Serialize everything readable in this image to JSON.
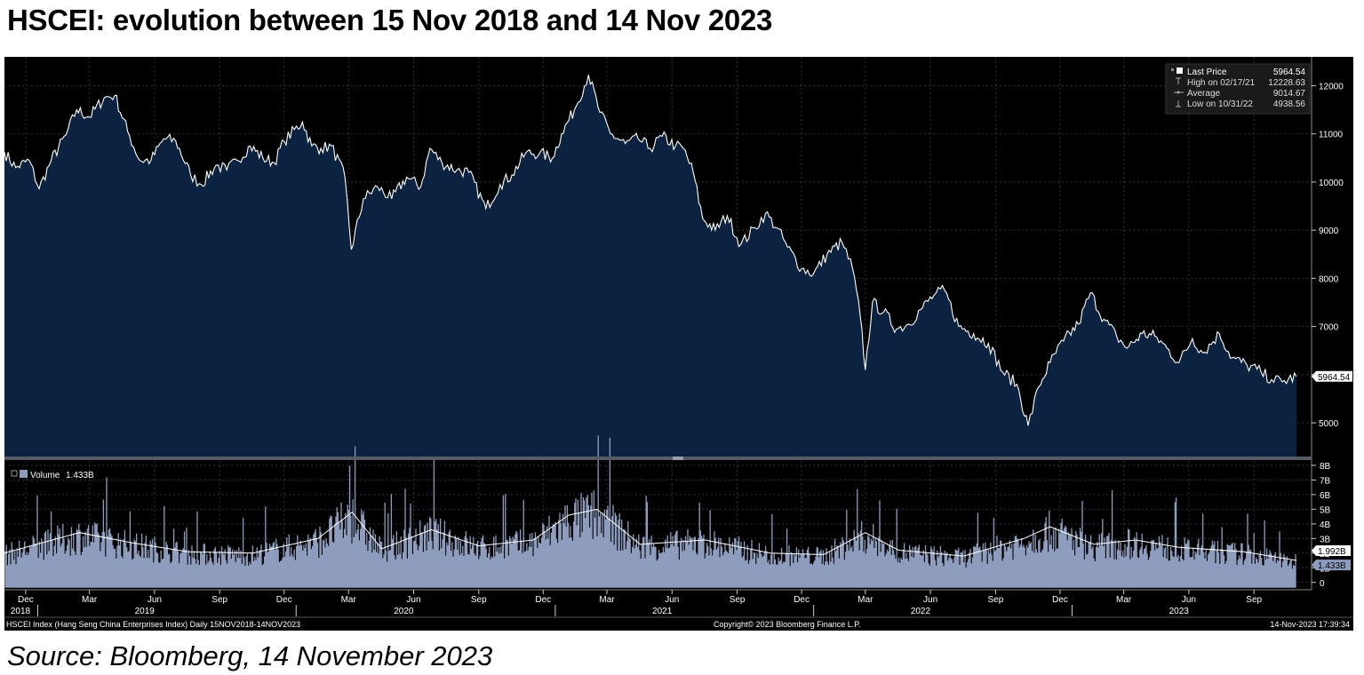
{
  "title": "HSCEI: evolution between 15 Nov 2018 and 14 Nov 2023",
  "source": "Source: Bloomberg, 14 November 2023",
  "footer": {
    "left": "HSCEI Index (Hang Seng China Enterprises Index)  Daily 15NOV2018-14NOV2023",
    "center": "Copyright© 2023 Bloomberg Finance L.P.",
    "right": "14-Nov-2023 17:39:34"
  },
  "colors": {
    "background": "#000000",
    "price_fill": "#0b2240",
    "price_line": "#ffffff",
    "volume_bars": "#8e9dbd",
    "volume_ma": "#ffffff",
    "grid": "#2c3442",
    "axis_text": "#ffffff",
    "last_price_box": "#ffffff"
  },
  "legend_price": {
    "rows": [
      {
        "icon": "square-icon",
        "label": "Last Price",
        "value": "5964.54"
      },
      {
        "icon": "high-marker-icon",
        "label": "High on 02/17/21",
        "value": "12228.63"
      },
      {
        "icon": "average-line-icon",
        "label": "Average",
        "value": "9014.67"
      },
      {
        "icon": "low-marker-icon",
        "label": "Low on 10/31/22",
        "value": "4938.56"
      }
    ]
  },
  "legend_volume": {
    "label": "Volume",
    "value": "1.433B"
  },
  "chart_data": [
    {
      "type": "area",
      "series_name": "Last Price",
      "x_range": [
        "2018-11-15",
        "2023-11-14"
      ],
      "ylim": [
        4300,
        12600
      ],
      "y_ticks": [
        5000,
        6000,
        7000,
        8000,
        9000,
        10000,
        11000,
        12000
      ],
      "y_tick_labels": [
        "5000",
        "6000",
        "7000",
        "8000",
        "9000",
        "10000",
        "11000",
        "12000"
      ],
      "grid": true,
      "last_value_label": "5964.54",
      "points": [
        [
          "2018-11-15",
          10620
        ],
        [
          "2018-12-01",
          10300
        ],
        [
          "2018-12-20",
          10450
        ],
        [
          "2019-01-03",
          9860
        ],
        [
          "2019-01-20",
          10450
        ],
        [
          "2019-02-10",
          10980
        ],
        [
          "2019-02-25",
          11500
        ],
        [
          "2019-03-15",
          11350
        ],
        [
          "2019-04-05",
          11750
        ],
        [
          "2019-04-20",
          11800
        ],
        [
          "2019-05-08",
          11050
        ],
        [
          "2019-05-25",
          10450
        ],
        [
          "2019-06-10",
          10450
        ],
        [
          "2019-06-28",
          10900
        ],
        [
          "2019-07-15",
          10850
        ],
        [
          "2019-08-05",
          10150
        ],
        [
          "2019-08-20",
          9950
        ],
        [
          "2019-09-10",
          10350
        ],
        [
          "2019-09-25",
          10250
        ],
        [
          "2019-10-10",
          10450
        ],
        [
          "2019-10-28",
          10750
        ],
        [
          "2019-11-15",
          10500
        ],
        [
          "2019-12-01",
          10400
        ],
        [
          "2019-12-15",
          10850
        ],
        [
          "2020-01-10",
          11250
        ],
        [
          "2020-01-23",
          10750
        ],
        [
          "2020-02-05",
          10700
        ],
        [
          "2020-02-20",
          10750
        ],
        [
          "2020-03-10",
          10100
        ],
        [
          "2020-03-19",
          8600
        ],
        [
          "2020-04-05",
          9650
        ],
        [
          "2020-04-25",
          9900
        ],
        [
          "2020-05-15",
          9650
        ],
        [
          "2020-06-05",
          10100
        ],
        [
          "2020-06-25",
          9900
        ],
        [
          "2020-07-08",
          10700
        ],
        [
          "2020-07-25",
          10400
        ],
        [
          "2020-08-15",
          10250
        ],
        [
          "2020-09-01",
          10200
        ],
        [
          "2020-09-25",
          9450
        ],
        [
          "2020-10-15",
          9950
        ],
        [
          "2020-11-01",
          10150
        ],
        [
          "2020-11-20",
          10600
        ],
        [
          "2020-12-10",
          10600
        ],
        [
          "2020-12-28",
          10500
        ],
        [
          "2021-01-10",
          11000
        ],
        [
          "2021-01-28",
          11500
        ],
        [
          "2021-02-17",
          12228
        ],
        [
          "2021-03-05",
          11450
        ],
        [
          "2021-03-20",
          11000
        ],
        [
          "2021-04-10",
          10800
        ],
        [
          "2021-04-28",
          10900
        ],
        [
          "2021-05-15",
          10700
        ],
        [
          "2021-06-01",
          10950
        ],
        [
          "2021-06-20",
          10750
        ],
        [
          "2021-07-01",
          10700
        ],
        [
          "2021-07-15",
          10200
        ],
        [
          "2021-07-28",
          9250
        ],
        [
          "2021-08-15",
          9000
        ],
        [
          "2021-09-01",
          9300
        ],
        [
          "2021-09-20",
          8700
        ],
        [
          "2021-10-10",
          9050
        ],
        [
          "2021-10-25",
          9350
        ],
        [
          "2021-11-10",
          9050
        ],
        [
          "2021-11-25",
          8650
        ],
        [
          "2021-12-15",
          8200
        ],
        [
          "2022-01-01",
          8100
        ],
        [
          "2022-01-20",
          8500
        ],
        [
          "2022-02-10",
          8750
        ],
        [
          "2022-02-25",
          8200
        ],
        [
          "2022-03-08",
          7200
        ],
        [
          "2022-03-15",
          6100
        ],
        [
          "2022-03-25",
          7500
        ],
        [
          "2022-04-10",
          7300
        ],
        [
          "2022-04-28",
          6950
        ],
        [
          "2022-05-15",
          7050
        ],
        [
          "2022-06-01",
          7350
        ],
        [
          "2022-06-20",
          7650
        ],
        [
          "2022-07-05",
          7750
        ],
        [
          "2022-07-25",
          7000
        ],
        [
          "2022-08-15",
          6850
        ],
        [
          "2022-09-05",
          6650
        ],
        [
          "2022-09-25",
          6050
        ],
        [
          "2022-10-15",
          5800
        ],
        [
          "2022-10-31",
          4940
        ],
        [
          "2022-11-15",
          5750
        ],
        [
          "2022-12-01",
          6250
        ],
        [
          "2022-12-20",
          6700
        ],
        [
          "2023-01-10",
          7050
        ],
        [
          "2023-01-27",
          7700
        ],
        [
          "2023-02-15",
          7150
        ],
        [
          "2023-03-05",
          6800
        ],
        [
          "2023-03-20",
          6550
        ],
        [
          "2023-04-10",
          6850
        ],
        [
          "2023-04-28",
          6800
        ],
        [
          "2023-05-15",
          6550
        ],
        [
          "2023-06-01",
          6250
        ],
        [
          "2023-06-20",
          6750
        ],
        [
          "2023-07-05",
          6450
        ],
        [
          "2023-07-28",
          6850
        ],
        [
          "2023-08-15",
          6350
        ],
        [
          "2023-09-05",
          6200
        ],
        [
          "2023-09-25",
          6050
        ],
        [
          "2023-10-10",
          5900
        ],
        [
          "2023-10-25",
          5850
        ],
        [
          "2023-11-14",
          5964.54
        ]
      ]
    },
    {
      "type": "bar",
      "series_name": "Volume",
      "unit": "B",
      "ylim": [
        -0.5,
        8.3
      ],
      "y_ticks": [
        0,
        1,
        2,
        3,
        4,
        5,
        6,
        7,
        8
      ],
      "y_tick_labels": [
        "0",
        "1B",
        "2B",
        "3B",
        "4B",
        "5B",
        "6B",
        "7B",
        "8B"
      ],
      "markers": [
        {
          "label": "1.992B",
          "value": 1.992
        },
        {
          "label": "1.433B",
          "value": 1.433
        }
      ],
      "level_points": [
        [
          "2018-11-15",
          2.0
        ],
        [
          "2019-03-01",
          3.4
        ],
        [
          "2019-05-15",
          2.7
        ],
        [
          "2019-08-01",
          2.1
        ],
        [
          "2019-11-01",
          2.0
        ],
        [
          "2020-02-01",
          3.0
        ],
        [
          "2020-03-20",
          4.8
        ],
        [
          "2020-05-01",
          2.3
        ],
        [
          "2020-07-10",
          3.6
        ],
        [
          "2020-09-15",
          2.5
        ],
        [
          "2020-12-01",
          2.9
        ],
        [
          "2021-01-20",
          4.6
        ],
        [
          "2021-03-01",
          5.0
        ],
        [
          "2021-05-01",
          2.6
        ],
        [
          "2021-08-01",
          2.9
        ],
        [
          "2021-11-01",
          2.0
        ],
        [
          "2022-01-15",
          1.9
        ],
        [
          "2022-03-15",
          3.4
        ],
        [
          "2022-05-01",
          2.2
        ],
        [
          "2022-08-01",
          1.8
        ],
        [
          "2022-10-25",
          3.0
        ],
        [
          "2022-12-01",
          3.8
        ],
        [
          "2023-02-01",
          2.6
        ],
        [
          "2023-04-01",
          2.9
        ],
        [
          "2023-06-01",
          2.4
        ],
        [
          "2023-09-01",
          2.1
        ],
        [
          "2023-11-14",
          1.5
        ]
      ]
    }
  ],
  "x_axis": {
    "months": [
      {
        "label": "Dec",
        "date": "2018-12-15"
      },
      {
        "label": "Mar",
        "date": "2019-03-15"
      },
      {
        "label": "Jun",
        "date": "2019-06-15"
      },
      {
        "label": "Sep",
        "date": "2019-09-15"
      },
      {
        "label": "Dec",
        "date": "2019-12-15"
      },
      {
        "label": "Mar",
        "date": "2020-03-15"
      },
      {
        "label": "Jun",
        "date": "2020-06-15"
      },
      {
        "label": "Sep",
        "date": "2020-09-15"
      },
      {
        "label": "Dec",
        "date": "2020-12-15"
      },
      {
        "label": "Mar",
        "date": "2021-03-15"
      },
      {
        "label": "Jun",
        "date": "2021-06-15"
      },
      {
        "label": "Sep",
        "date": "2021-09-15"
      },
      {
        "label": "Dec",
        "date": "2021-12-15"
      },
      {
        "label": "Mar",
        "date": "2022-03-15"
      },
      {
        "label": "Jun",
        "date": "2022-06-15"
      },
      {
        "label": "Sep",
        "date": "2022-09-15"
      },
      {
        "label": "Dec",
        "date": "2022-12-15"
      },
      {
        "label": "Mar",
        "date": "2023-03-15"
      },
      {
        "label": "Jun",
        "date": "2023-06-15"
      },
      {
        "label": "Sep",
        "date": "2023-09-15"
      }
    ],
    "years": [
      {
        "label": "2018",
        "date": "2018-12-01"
      },
      {
        "label": "2019",
        "date": "2019-06-01"
      },
      {
        "label": "2020",
        "date": "2020-06-01"
      },
      {
        "label": "2021",
        "date": "2021-06-01"
      },
      {
        "label": "2022",
        "date": "2022-06-01"
      },
      {
        "label": "2023",
        "date": "2023-06-01"
      }
    ]
  }
}
